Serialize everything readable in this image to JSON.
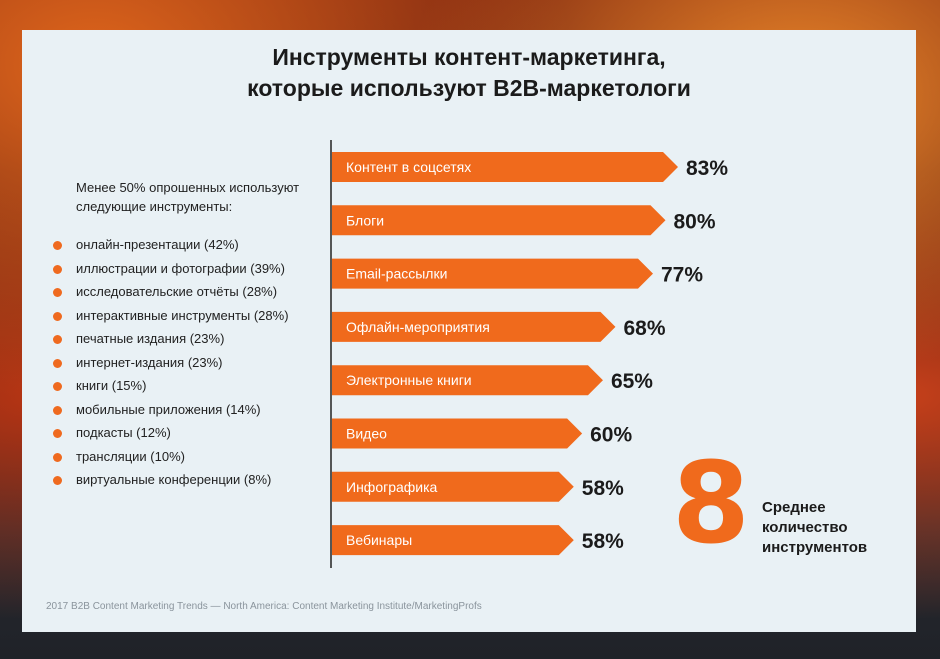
{
  "title_line1": "Инструменты контент-маркетинга,",
  "title_line2": "которые используют B2B-маркетологи",
  "intro": "Менее 50% опрошенных используют следующие инструменты:",
  "tools": [
    "онлайн-презентации (42%)",
    "иллюстрации и фотографии (39%)",
    "исследовательские отчёты (28%)",
    "интерактивные инструменты (28%)",
    "печатные издания (23%)",
    "интернет-издания (23%)",
    "книги (15%)",
    "мобильные приложения (14%)",
    "подкасты (12%)",
    "трансляции (10%)",
    "виртуальные конференции (8%)"
  ],
  "big_number": "8",
  "big_number_label": "Среднее\nколичество\nинструментов",
  "source": "2017 B2B Content Marketing Trends — North America: Content Marketing Institute/MarketingProfs",
  "colors": {
    "accent": "#f06a1c",
    "card": "#e9f1f5",
    "text": "#1b1b1b"
  },
  "chart_data": {
    "type": "bar",
    "orientation": "horizontal",
    "categories": [
      "Контент в соцсетях",
      "Блоги",
      "Email-рассылки",
      "Офлайн-мероприятия",
      "Электронные книги",
      "Видео",
      "Инфографика",
      "Вебинары"
    ],
    "values": [
      83,
      80,
      77,
      68,
      65,
      60,
      58,
      58
    ],
    "value_labels": [
      "83%",
      "80%",
      "77%",
      "68%",
      "65%",
      "60%",
      "58%",
      "58%"
    ],
    "unit": "%",
    "grid": false,
    "legend": "none"
  }
}
